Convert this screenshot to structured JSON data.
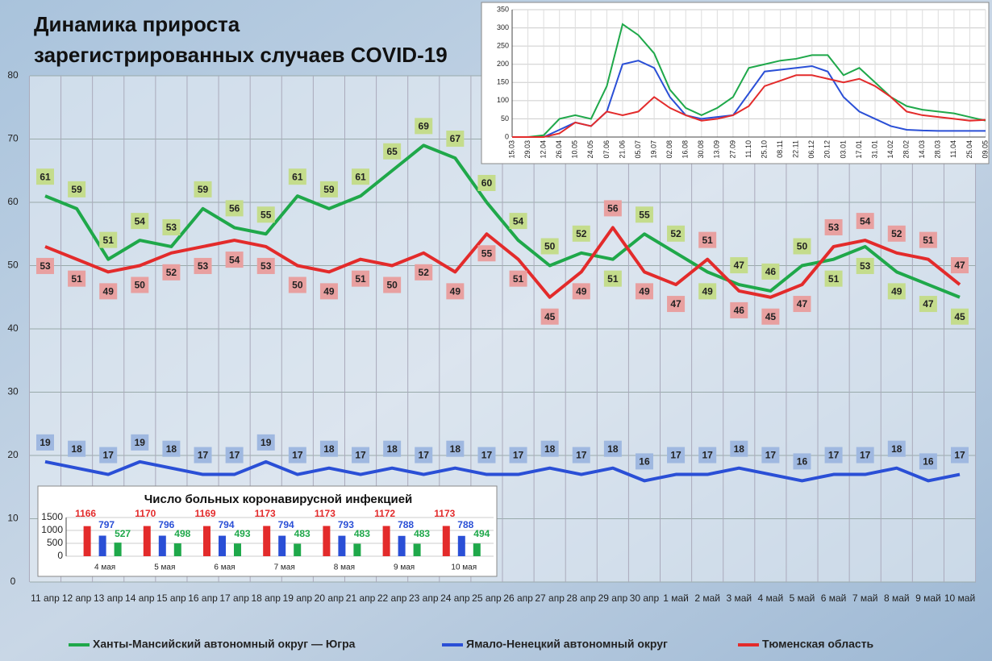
{
  "chart_data": [
    {
      "type": "line",
      "title": [
        "Динамика прироста",
        "зарегистрированных случаев COVID-19"
      ],
      "categories": [
        "11 апр",
        "12 апр",
        "13 апр",
        "14 апр",
        "15 апр",
        "16 апр",
        "17 апр",
        "18 апр",
        "19 апр",
        "20 апр",
        "21 апр",
        "22 апр",
        "23 апр",
        "24 апр",
        "25 апр",
        "26 апр",
        "27 апр",
        "28 апр",
        "29 апр",
        "30 апр",
        "1 май",
        "2 май",
        "3 май",
        "4 май",
        "5 май",
        "6 май",
        "7 май",
        "8 май",
        "9 май",
        "10 май"
      ],
      "series": [
        {
          "name": "Ханты-Мансийский автономный округ — Югра",
          "color": "#1fa84a",
          "label_fill": "#c4dc8c",
          "values": [
            61,
            59,
            51,
            54,
            53,
            59,
            56,
            55,
            61,
            59,
            61,
            65,
            69,
            67,
            60,
            54,
            50,
            52,
            51,
            55,
            52,
            49,
            47,
            46,
            50,
            51,
            53,
            49,
            47,
            45
          ]
        },
        {
          "name": "Ямало-Ненецкий автономный округ",
          "color": "#2a4fd6",
          "label_fill": "#9fb8e0",
          "values": [
            19,
            18,
            17,
            19,
            18,
            17,
            17,
            19,
            17,
            18,
            17,
            18,
            17,
            18,
            17,
            17,
            18,
            17,
            18,
            16,
            17,
            17,
            18,
            17,
            16,
            17,
            17,
            18,
            16,
            17
          ]
        },
        {
          "name": "Тюменская область",
          "color": "#e32b2b",
          "label_fill": "#e8a0a0",
          "values": [
            53,
            51,
            49,
            50,
            52,
            53,
            54,
            53,
            50,
            49,
            51,
            50,
            52,
            49,
            55,
            51,
            45,
            49,
            56,
            49,
            47,
            51,
            46,
            45,
            47,
            53,
            54,
            52,
            51,
            47
          ]
        }
      ],
      "ylim": [
        0,
        80
      ],
      "yticks": [
        0,
        10,
        20,
        30,
        40,
        50,
        60,
        70,
        80
      ],
      "grid": true,
      "legend": "bottom"
    },
    {
      "type": "line",
      "x": [
        "15.03",
        "29.03",
        "12.04",
        "26.04",
        "10.05",
        "24.05",
        "07.06",
        "21.06",
        "05.07",
        "19.07",
        "02.08",
        "16.08",
        "30.08",
        "13.09",
        "27.09",
        "11.10",
        "25.10",
        "08.11",
        "22.11",
        "06.12",
        "20.12",
        "03.01",
        "17.01",
        "31.01",
        "14.02",
        "28.02",
        "14.03",
        "28.03",
        "11.04",
        "25.04",
        "09.05"
      ],
      "series": [
        {
          "color": "#1fa84a",
          "values": [
            0,
            0,
            5,
            50,
            60,
            50,
            140,
            310,
            280,
            230,
            130,
            80,
            60,
            80,
            110,
            190,
            200,
            210,
            215,
            225,
            225,
            170,
            190,
            150,
            110,
            85,
            75,
            70,
            65,
            55,
            45
          ]
        },
        {
          "color": "#2a4fd6",
          "values": [
            0,
            0,
            0,
            20,
            40,
            30,
            70,
            200,
            210,
            190,
            110,
            60,
            50,
            55,
            60,
            120,
            180,
            185,
            190,
            195,
            180,
            110,
            70,
            50,
            30,
            20,
            18,
            17,
            17,
            17,
            17
          ]
        },
        {
          "color": "#e32b2b",
          "values": [
            0,
            0,
            0,
            10,
            40,
            30,
            70,
            60,
            70,
            110,
            80,
            60,
            45,
            50,
            60,
            85,
            140,
            155,
            170,
            170,
            160,
            150,
            160,
            140,
            110,
            70,
            60,
            55,
            50,
            45,
            47
          ]
        }
      ],
      "ylim": [
        0,
        350
      ],
      "yticks": [
        0,
        50,
        100,
        150,
        200,
        250,
        300,
        350
      ],
      "grid": true
    },
    {
      "type": "bar",
      "title": "Число больных коронавирусной  инфекцией",
      "categories": [
        "4 мая",
        "5 мая",
        "6 мая",
        "7 мая",
        "8 мая",
        "9 мая",
        "10 мая"
      ],
      "series": [
        {
          "color": "#e32b2b",
          "values": [
            1166,
            1170,
            1169,
            1173,
            1173,
            1172,
            1173
          ]
        },
        {
          "color": "#2a4fd6",
          "values": [
            797,
            796,
            794,
            794,
            793,
            788,
            788
          ]
        },
        {
          "color": "#1fa84a",
          "values": [
            527,
            498,
            493,
            483,
            483,
            483,
            494
          ]
        }
      ],
      "ylim": [
        0,
        1500
      ],
      "yticks": [
        0,
        500,
        1000,
        1500
      ],
      "grid": true
    }
  ]
}
